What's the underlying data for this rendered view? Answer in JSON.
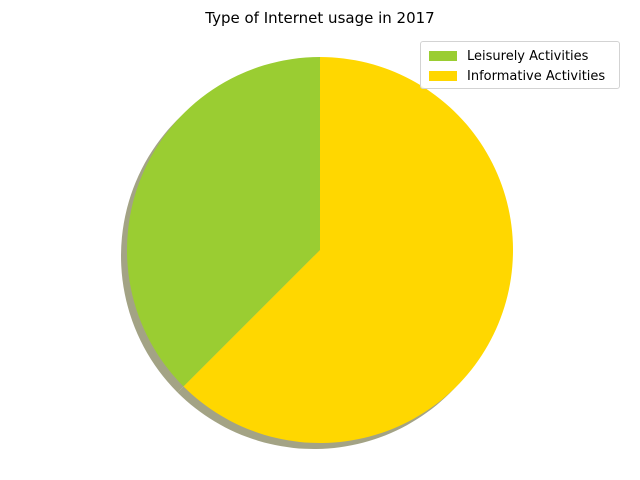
{
  "chart_data": {
    "type": "pie",
    "title": "Type of Internet usage in 2017",
    "slices": [
      {
        "label": "Leisurely Activities",
        "value": 37.5,
        "color": "#9ACD32"
      },
      {
        "label": "Informative Activities",
        "value": 62.5,
        "color": "#FFD700"
      }
    ],
    "start_angle_deg": 90,
    "direction": "counterclockwise",
    "shadow": true,
    "legend_position": "top-right"
  }
}
